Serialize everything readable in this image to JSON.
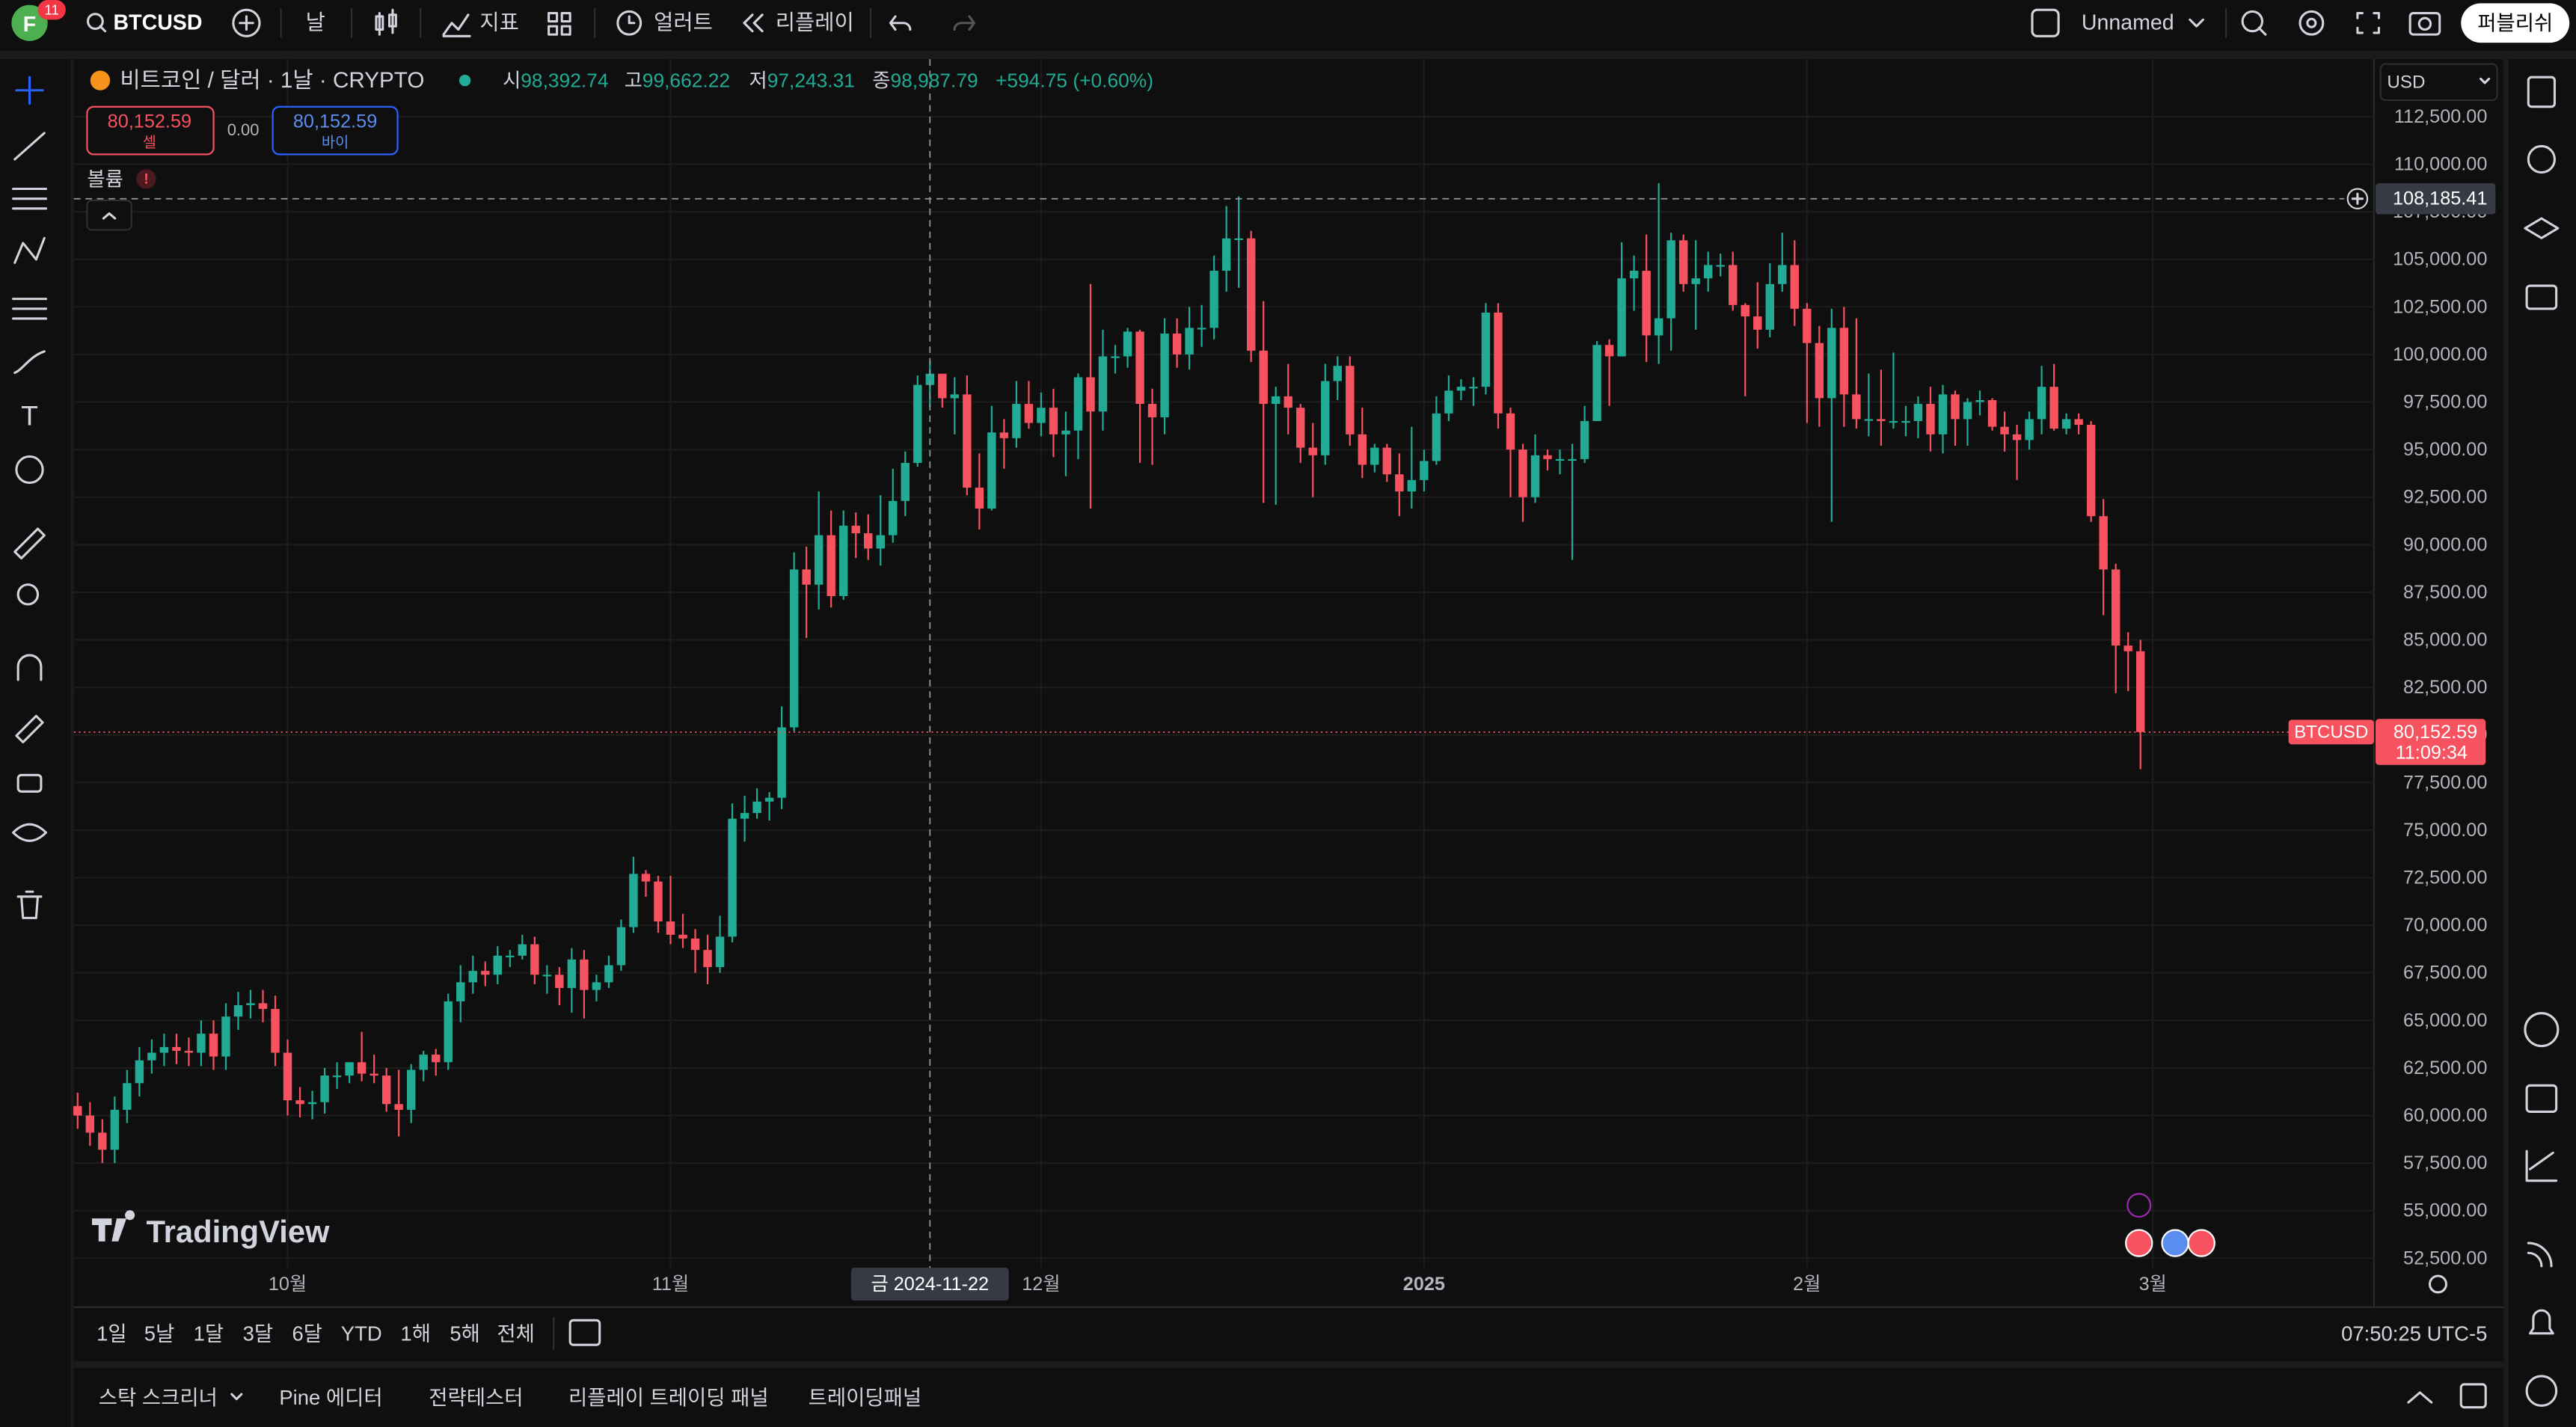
{
  "top_bar": {
    "avatar": "F",
    "badge": "11",
    "symbol": "BTCUSD",
    "interval": "날",
    "indicators": "지표",
    "alerts": "얼러트",
    "replay": "리플레이",
    "layout_name": "Unnamed",
    "publish": "퍼블리쉬"
  },
  "legend": {
    "title": "비트코인 / 달러 · 1날 · CRYPTO",
    "open_key": "시",
    "open": "98,392.74",
    "high_key": "고",
    "high": "99,662.22",
    "low_key": "저",
    "low": "97,243.31",
    "close_key": "종",
    "close": "98,987.79",
    "change": "+594.75 (+0.60%)"
  },
  "trade": {
    "sell_price": "80,152.59",
    "sell": "셀",
    "spread": "0.00",
    "buy_price": "80,152.59",
    "buy": "바이"
  },
  "volume_label": "볼륨",
  "currency": "USD",
  "watermark": "TradingView",
  "chart_data": {
    "type": "candlestick",
    "up_color": "#22ab94",
    "down_color": "#f7525f",
    "grid": true,
    "symbol_tag": "BTCUSD",
    "last_price_label": "80,152.59",
    "countdown": "11:09:34",
    "crosshair": {
      "date_label": "금 2024-11-22",
      "price": {
        "value": 108185.41,
        "label": "108,185.41"
      }
    },
    "xlim": [
      -0.3,
      185.9
    ],
    "xticks": [
      {
        "value": 17,
        "label": "10월"
      },
      {
        "value": 48,
        "label": "11월"
      },
      {
        "value": 78,
        "label": "12월"
      },
      {
        "value": 109,
        "label": "2025"
      },
      {
        "value": 140,
        "label": "2월"
      },
      {
        "value": 168,
        "label": "3월"
      }
    ],
    "ylim": [
      52000,
      115350
    ],
    "yticks": [
      {
        "value": 52500,
        "label": "52,500.00"
      },
      {
        "value": 55000,
        "label": "55,000.00"
      },
      {
        "value": 57500,
        "label": "57,500.00"
      },
      {
        "value": 60000,
        "label": "60,000.00"
      },
      {
        "value": 62500,
        "label": "62,500.00"
      },
      {
        "value": 65000,
        "label": "65,000.00"
      },
      {
        "value": 67500,
        "label": "67,500.00"
      },
      {
        "value": 70000,
        "label": "70,000.00"
      },
      {
        "value": 72500,
        "label": "72,500.00"
      },
      {
        "value": 75000,
        "label": "75,000.00"
      },
      {
        "value": 77500,
        "label": "77,500.00"
      },
      {
        "value": 80000,
        "label": "80,000.00"
      },
      {
        "value": 82500,
        "label": "82,500.00"
      },
      {
        "value": 85000,
        "label": "85,000.00"
      },
      {
        "value": 87500,
        "label": "87,500.00"
      },
      {
        "value": 90000,
        "label": "90,000.00"
      },
      {
        "value": 92500,
        "label": "92,500.00"
      },
      {
        "value": 95000,
        "label": "95,000.00"
      },
      {
        "value": 97500,
        "label": "97,500.00"
      },
      {
        "value": 100000,
        "label": "100,000.00"
      },
      {
        "value": 102500,
        "label": "102,500.00"
      },
      {
        "value": 105000,
        "label": "105,000.00"
      },
      {
        "value": 107500,
        "label": "107,500.00"
      },
      {
        "value": 110000,
        "label": "110,000.00"
      },
      {
        "value": 112500,
        "label": "112,500.00"
      }
    ],
    "open": [
      60500,
      60000,
      59100,
      58200,
      60300,
      61700,
      62900,
      63300,
      63600,
      63400,
      63300,
      64300,
      63100,
      65200,
      65800,
      65900,
      65600,
      63300,
      60800,
      60600,
      60700,
      62100,
      62100,
      62800,
      62200,
      62100,
      60600,
      60300,
      62400,
      63200,
      62800,
      66000,
      67000,
      67600,
      67400,
      68400,
      68400,
      69000,
      67400,
      67400,
      66700,
      68200,
      66600,
      67000,
      67900,
      69900,
      72700,
      72300,
      70200,
      69500,
      69300,
      68700,
      67800,
      69400,
      75600,
      75900,
      76500,
      76700,
      80400,
      88700,
      87900,
      90500,
      87300,
      91000,
      90600,
      89800,
      90500,
      92300,
      94300,
      98392.74,
      98987.79,
      97700,
      97900,
      93000,
      91900,
      95900,
      95600,
      97400,
      96400,
      97200,
      95800,
      96000,
      98800,
      97000,
      99900,
      99900,
      101200,
      97400,
      96700,
      101100,
      100000,
      101400,
      101400,
      104400,
      106100,
      106100,
      100200,
      97400,
      97800,
      97200,
      95100,
      94700,
      98600,
      99400,
      95800,
      94200,
      95100,
      93700,
      92800,
      93400,
      94400,
      96900,
      98100,
      98300,
      98300,
      102200,
      96900,
      95000,
      92500,
      94700,
      94500,
      94500,
      94500,
      96500,
      100500,
      99900,
      104000,
      104400,
      101000,
      101900,
      106000,
      103700,
      104000,
      104700,
      104700,
      102600,
      102000,
      101300,
      103700,
      104700,
      102400,
      100600,
      97700,
      101400,
      97900,
      96600,
      96600,
      96500,
      96500,
      96500,
      97400,
      95800,
      97900,
      96600,
      97500,
      97600,
      96200,
      95800,
      95500,
      96600,
      98300,
      96100,
      96600,
      96300,
      91500,
      88700,
      84700,
      84400
    ],
    "high": [
      61200,
      60700,
      59800,
      61000,
      62400,
      63600,
      64000,
      64300,
      64300,
      64100,
      65000,
      65000,
      65900,
      66500,
      66600,
      66600,
      66300,
      64000,
      61500,
      61300,
      62500,
      62800,
      62800,
      64400,
      63200,
      62500,
      62400,
      62700,
      63400,
      63500,
      66400,
      67900,
      68400,
      68100,
      68900,
      68700,
      69500,
      69400,
      67900,
      67800,
      68800,
      68700,
      67400,
      68400,
      70300,
      73600,
      72900,
      72600,
      72600,
      70600,
      69800,
      69500,
      70500,
      76400,
      76800,
      77200,
      77000,
      81500,
      89600,
      89900,
      92800,
      91800,
      91800,
      91700,
      91600,
      92600,
      94000,
      94900,
      98900,
      99662.22,
      98700,
      98800,
      98900,
      94800,
      97300,
      96600,
      98600,
      98600,
      98000,
      98200,
      97000,
      99000,
      103700,
      101300,
      100500,
      101400,
      101300,
      98200,
      101900,
      101900,
      102500,
      102600,
      105200,
      107800,
      108300,
      106500,
      102800,
      98300,
      99500,
      97400,
      96400,
      99500,
      99900,
      99900,
      97200,
      95300,
      95300,
      94800,
      96200,
      95000,
      97800,
      98900,
      98700,
      98800,
      102700,
      102700,
      97200,
      95300,
      95800,
      95000,
      95000,
      95300,
      97300,
      100700,
      100800,
      105900,
      105200,
      106300,
      109000,
      106400,
      106300,
      106000,
      105400,
      105300,
      105400,
      102700,
      103800,
      104800,
      106400,
      106000,
      102700,
      101500,
      102400,
      102500,
      101900,
      99000,
      99200,
      100100,
      97300,
      97800,
      98300,
      98400,
      98100,
      97700,
      98100,
      97700,
      97000,
      96300,
      97000,
      99400,
      99500,
      96900,
      96900,
      96500,
      92400,
      89000,
      85400,
      85000
    ],
    "low": [
      59300,
      58400,
      57500,
      57500,
      59600,
      61000,
      62200,
      62600,
      62700,
      62600,
      62600,
      62400,
      62400,
      64500,
      65100,
      64900,
      62600,
      60000,
      59900,
      59800,
      60100,
      61400,
      61700,
      61800,
      61700,
      60200,
      58900,
      59600,
      61800,
      62100,
      62400,
      64900,
      66400,
      66800,
      66900,
      67800,
      68200,
      66900,
      66400,
      65800,
      65400,
      65100,
      66000,
      66700,
      67600,
      69600,
      71500,
      69600,
      69000,
      68800,
      67500,
      66900,
      67500,
      69100,
      74400,
      75600,
      75500,
      76100,
      80200,
      85100,
      86600,
      86700,
      87100,
      89300,
      89200,
      88900,
      90100,
      91500,
      94100,
      97243.31,
      97200,
      95800,
      92600,
      90800,
      91800,
      94000,
      95100,
      96100,
      95700,
      94600,
      93600,
      94500,
      91900,
      96000,
      99000,
      99300,
      94300,
      94200,
      95800,
      99300,
      99200,
      100400,
      100800,
      103300,
      103500,
      99600,
      92200,
      92100,
      95800,
      94300,
      92500,
      94200,
      97600,
      95200,
      93500,
      93800,
      93300,
      91500,
      91900,
      92800,
      94200,
      96500,
      97600,
      97300,
      97900,
      96100,
      92500,
      91200,
      92200,
      93900,
      93700,
      89200,
      94300,
      96500,
      97300,
      99900,
      102300,
      99600,
      99500,
      100200,
      103300,
      101300,
      103300,
      104100,
      102300,
      97800,
      100300,
      100900,
      103300,
      101500,
      96400,
      96200,
      91200,
      96200,
      96100,
      95700,
      95200,
      96100,
      95700,
      95600,
      94900,
      94800,
      95200,
      95200,
      96800,
      96000,
      94900,
      93400,
      95000,
      95800,
      96000,
      95800,
      95800,
      91200,
      86300,
      82200,
      82300,
      78200
    ],
    "close": [
      60000,
      59100,
      58200,
      60300,
      61700,
      62900,
      63300,
      63600,
      63400,
      63300,
      64300,
      63100,
      65200,
      65800,
      65900,
      65600,
      63300,
      60800,
      60600,
      60700,
      62100,
      62100,
      62800,
      62200,
      62100,
      60600,
      60300,
      62400,
      63200,
      62800,
      66000,
      67000,
      67600,
      67400,
      68400,
      68400,
      69000,
      67400,
      67400,
      66700,
      68200,
      66600,
      67000,
      67900,
      69900,
      72700,
      72300,
      70200,
      69500,
      69300,
      68700,
      67800,
      69400,
      75600,
      75900,
      76500,
      76700,
      80400,
      88700,
      87900,
      90500,
      87300,
      91000,
      90600,
      89800,
      90500,
      92300,
      94300,
      98400,
      98987.79,
      97700,
      97900,
      93000,
      91900,
      95900,
      95600,
      97400,
      96400,
      97200,
      95800,
      96000,
      98800,
      97000,
      99900,
      99900,
      101200,
      97400,
      96700,
      101100,
      100000,
      101400,
      101400,
      104400,
      106100,
      106100,
      100200,
      97400,
      97800,
      97200,
      95100,
      94700,
      98600,
      99400,
      95800,
      94200,
      95100,
      93700,
      92800,
      93400,
      94400,
      96900,
      98100,
      98300,
      98300,
      102200,
      96900,
      95000,
      92500,
      94700,
      94500,
      94500,
      94500,
      96500,
      100500,
      99900,
      104000,
      104400,
      101000,
      101900,
      106000,
      103700,
      104000,
      104700,
      104700,
      102600,
      102000,
      101300,
      103700,
      104700,
      102400,
      100600,
      97700,
      101400,
      97900,
      96600,
      96600,
      96500,
      96500,
      96500,
      97400,
      95800,
      97900,
      96600,
      97500,
      97600,
      96200,
      95800,
      95500,
      96600,
      98300,
      96100,
      96600,
      96300,
      91500,
      88700,
      84700,
      84400,
      80152.59
    ]
  },
  "range_bar": {
    "ranges": [
      "1일",
      "5날",
      "1달",
      "3달",
      "6달",
      "YTD",
      "1해",
      "5해",
      "전체"
    ],
    "clock": "07:50:25 UTC-5"
  },
  "bottom_panel": {
    "tabs": [
      "스탁 스크리너",
      "Pine 에디터",
      "전략테스터",
      "리플레이 트레이딩 패널",
      "트레이딩패널"
    ]
  }
}
